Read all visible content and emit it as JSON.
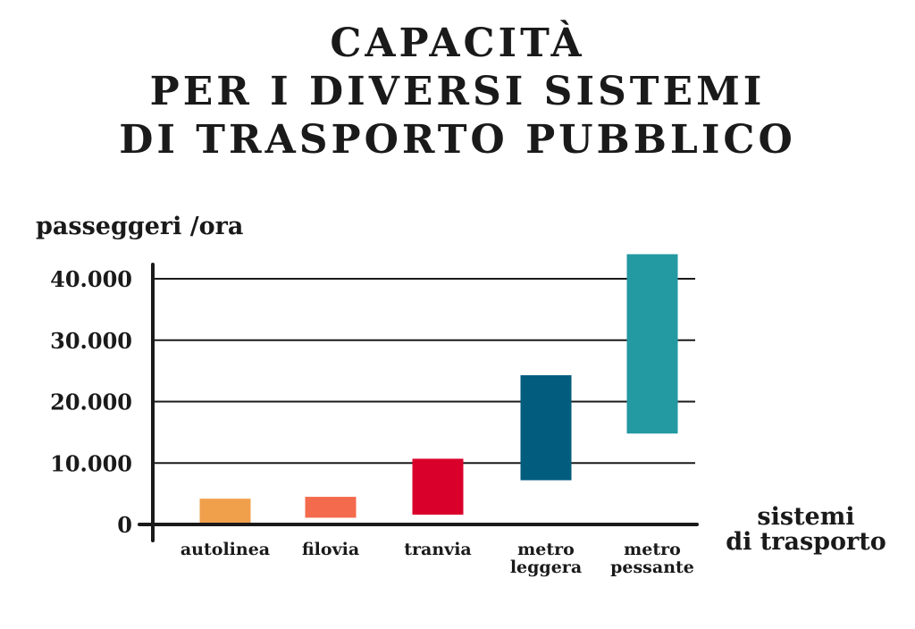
{
  "title_lines": [
    "CAPACITÀ",
    "PER I DIVERSI SISTEMI",
    "DI TRASPORTO PUBBLICO"
  ],
  "chart_data": {
    "type": "bar",
    "title": "CAPACITÀ PER I DIVERSI SISTEMI DI TRASPORTO PUBBLICO",
    "ylabel": "passeggeri /ora",
    "xlabel": [
      "sistemi",
      "di trasporto"
    ],
    "ylim": [
      0,
      44000
    ],
    "yticks": [
      0,
      10000,
      20000,
      30000,
      40000
    ],
    "ytick_labels": [
      "0",
      "10.000",
      "20.000",
      "30.000",
      "40.000"
    ],
    "grid": true,
    "categories": [
      {
        "label": [
          "autolinea"
        ],
        "low": 0,
        "high": 4200,
        "color": "#F0A04B"
      },
      {
        "label": [
          "filovia"
        ],
        "low": 1100,
        "high": 4500,
        "color": "#F36A4C"
      },
      {
        "label": [
          "tranvia"
        ],
        "low": 1600,
        "high": 10700,
        "color": "#D9002B"
      },
      {
        "label": [
          "metro",
          "leggera"
        ],
        "low": 7200,
        "high": 24300,
        "color": "#015C7E"
      },
      {
        "label": [
          "metro",
          "pessante"
        ],
        "low": 14800,
        "high": 44000,
        "color": "#2399A2"
      }
    ]
  }
}
